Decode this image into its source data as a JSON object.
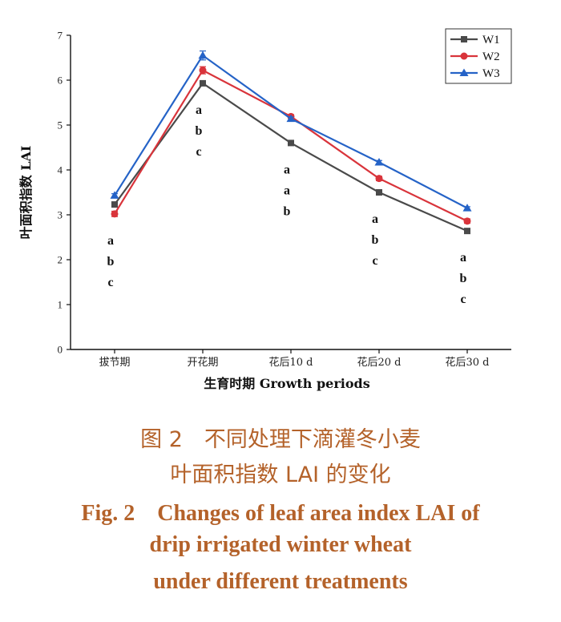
{
  "chart_data": {
    "type": "line",
    "categories": [
      "拔节期",
      "开花期",
      "花后10 d",
      "花后20 d",
      "花后30 d"
    ],
    "series": [
      {
        "name": "W1",
        "values": [
          3.23,
          5.93,
          4.6,
          3.5,
          2.64
        ],
        "errors": [
          0.04,
          0.05,
          0.04,
          0.04,
          0.03
        ],
        "color": "#4a4a4a",
        "marker": "square"
      },
      {
        "name": "W2",
        "values": [
          3.02,
          6.22,
          5.19,
          3.81,
          2.86
        ],
        "errors": [
          0.06,
          0.08,
          0.04,
          0.05,
          0.05
        ],
        "color": "#d9343b",
        "marker": "circle"
      },
      {
        "name": "W3",
        "values": [
          3.43,
          6.55,
          5.14,
          4.17,
          3.15
        ],
        "errors": [
          0.04,
          0.1,
          0.04,
          0.04,
          0.03
        ],
        "color": "#2563c7",
        "marker": "triangle"
      }
    ],
    "significance": [
      {
        "category": "拔节期",
        "letters": [
          "a",
          "b",
          "c"
        ]
      },
      {
        "category": "开花期",
        "letters": [
          "a",
          "b",
          "c"
        ]
      },
      {
        "category": "花后10 d",
        "letters": [
          "a",
          "a",
          "b"
        ]
      },
      {
        "category": "花后20 d",
        "letters": [
          "a",
          "b",
          "c"
        ]
      },
      {
        "category": "花后30 d",
        "letters": [
          "a",
          "b",
          "c"
        ]
      }
    ],
    "ylim": [
      0,
      7
    ],
    "yticks": [
      "0",
      "1",
      "2",
      "3",
      "4",
      "5",
      "6",
      "7"
    ],
    "xlabel": "生育时期 Growth periods",
    "ylabel": "叶面积指数 LAI",
    "legend_position": "top-right",
    "grid": false
  },
  "caption": {
    "cn_line1": "图 2　不同处理下滴灌冬小麦",
    "cn_line2": "叶面积指数 LAI 的变化",
    "en_line1": "Fig. 2　Changes of leaf area index LAI of",
    "en_line2": "drip irrigated winter wheat",
    "en_line3": "under different treatments"
  }
}
